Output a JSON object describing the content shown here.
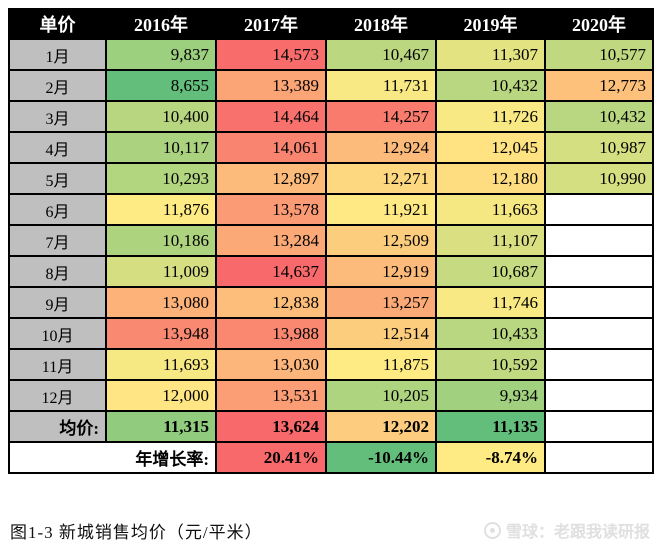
{
  "chart_data": {
    "type": "heatmap",
    "title": "图1-3 新城销售均价（元/平米）",
    "corner_label": "单价",
    "columns": [
      "2016年",
      "2017年",
      "2018年",
      "2019年",
      "2020年"
    ],
    "month_rows": [
      "1月",
      "2月",
      "3月",
      "4月",
      "5月",
      "6月",
      "7月",
      "8月",
      "9月",
      "10月",
      "11月",
      "12月"
    ],
    "values": [
      [
        9837,
        14573,
        10467,
        11307,
        10577
      ],
      [
        8655,
        13389,
        11731,
        10432,
        12773
      ],
      [
        10400,
        14464,
        14257,
        11726,
        10432
      ],
      [
        10117,
        14061,
        12924,
        12045,
        10987
      ],
      [
        10293,
        12897,
        12271,
        12180,
        10990
      ],
      [
        11876,
        13578,
        11921,
        11663,
        null
      ],
      [
        10186,
        13284,
        12509,
        11107,
        null
      ],
      [
        11009,
        14637,
        12919,
        10687,
        null
      ],
      [
        13080,
        12838,
        13257,
        11746,
        null
      ],
      [
        13948,
        13988,
        12514,
        10433,
        null
      ],
      [
        11693,
        13030,
        11875,
        10592,
        null
      ],
      [
        12000,
        13531,
        10205,
        9934,
        null
      ]
    ],
    "average_row": {
      "label": "均价:",
      "values": [
        11315,
        13624,
        12202,
        11135,
        null
      ]
    },
    "growth_row": {
      "label": "年增长率:",
      "values": [
        null,
        20.41,
        -10.44,
        -8.74,
        null
      ]
    },
    "color_scale": {
      "low_color": "#63BE7B",
      "mid_color": "#FFEB84",
      "high_color": "#F8696B",
      "midpoint": "median",
      "note": "low values green, high values red"
    },
    "legend_position": "none",
    "grid": true
  },
  "caption": "图1-3 新城销售均价（元/平米）",
  "watermark": {
    "text": "雪球：老跟我读研报"
  },
  "styles": {
    "header_bg": "#000000",
    "header_fg": "#FFFFFF",
    "label_bg": "#BFBFBF",
    "border_color": "#000000",
    "empty_bg": "#FFFFFF",
    "watermark_color": "#E0E0E0"
  }
}
